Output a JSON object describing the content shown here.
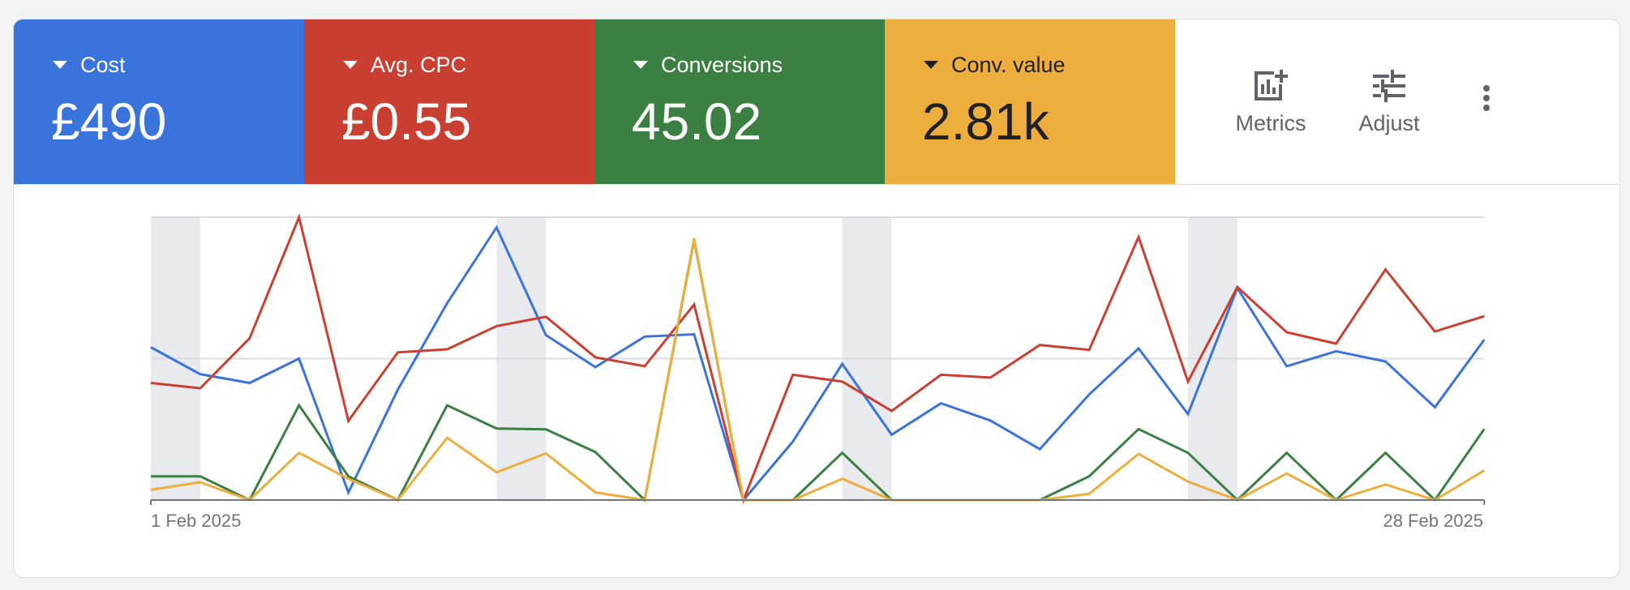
{
  "scorecards": [
    {
      "label": "Cost",
      "value": "£490",
      "color": "#3a73dc",
      "text_color": "#ffffff"
    },
    {
      "label": "Avg. CPC",
      "value": "£0.55",
      "color": "#c94032",
      "text_color": "#ffffff"
    },
    {
      "label": "Conversions",
      "value": "45.02",
      "color": "#3b7f42",
      "text_color": "#ffffff"
    },
    {
      "label": "Conv. value",
      "value": "2.81k",
      "color": "#edae3e",
      "text_color": "#202124"
    }
  ],
  "toolbar": {
    "metrics_label": "Metrics",
    "metrics_icon": "add-chart-icon",
    "adjust_label": "Adjust",
    "adjust_icon": "tune-icon",
    "more_icon": "more-vert-icon"
  },
  "chart_data": {
    "type": "line",
    "title": "",
    "xlabel": "",
    "ylabel": "",
    "x_start_label": "1 Feb 2025",
    "x_end_label": "28 Feb 2025",
    "x": [
      "1 Feb",
      "2 Feb",
      "3 Feb",
      "4 Feb",
      "5 Feb",
      "6 Feb",
      "7 Feb",
      "8 Feb",
      "9 Feb",
      "10 Feb",
      "11 Feb",
      "12 Feb",
      "13 Feb",
      "14 Feb",
      "15 Feb",
      "16 Feb",
      "17 Feb",
      "18 Feb",
      "19 Feb",
      "20 Feb",
      "21 Feb",
      "22 Feb",
      "23 Feb",
      "24 Feb",
      "25 Feb",
      "26 Feb",
      "27 Feb",
      "28 Feb"
    ],
    "ylim_normalized": [
      0,
      100
    ],
    "grid": true,
    "gridlines_normalized": [
      50,
      100
    ],
    "weekend_bands_day_index": [
      0,
      7,
      14,
      21
    ],
    "legend": "scorecards above chart",
    "series": [
      {
        "name": "Cost",
        "color": "#3a73dc",
        "values": [
          54,
          44.5,
          41.4,
          50,
          2.7,
          39,
          69.6,
          96.4,
          58.3,
          47,
          57.8,
          58.6,
          0,
          20.7,
          48.1,
          23.1,
          34.2,
          28.1,
          18,
          37.3,
          53.6,
          30.4,
          75,
          47.3,
          52.6,
          49,
          32.8,
          56.7
        ]
      },
      {
        "name": "Avg. CPC",
        "color": "#c94032",
        "values": [
          41.4,
          39.5,
          57.2,
          100,
          28,
          52.2,
          53.3,
          61.5,
          64.8,
          50.5,
          47.3,
          69.1,
          0,
          44.3,
          41.9,
          31.5,
          44.3,
          43.3,
          54.8,
          53.1,
          93,
          41.9,
          75.3,
          59.3,
          55.3,
          81.5,
          59.6,
          65
        ]
      },
      {
        "name": "Conversions",
        "color": "#3b7f42",
        "values": [
          8.4,
          8.4,
          0,
          33.5,
          8.4,
          0,
          33.5,
          25.3,
          25,
          17,
          0,
          92,
          0,
          0,
          16.7,
          0,
          0,
          0,
          0,
          8.4,
          25.1,
          16.7,
          0,
          16.7,
          0,
          16.7,
          0,
          25.1
        ]
      },
      {
        "name": "Conv. value",
        "color": "#edae3e",
        "values": [
          3.6,
          6.3,
          0,
          16.7,
          7.5,
          0,
          22,
          9.8,
          16.5,
          2.7,
          0,
          92.5,
          0,
          0,
          7.5,
          0,
          0,
          0,
          0,
          2.2,
          16.3,
          6.5,
          0,
          9.4,
          0,
          5.5,
          0,
          10.5
        ]
      }
    ]
  }
}
